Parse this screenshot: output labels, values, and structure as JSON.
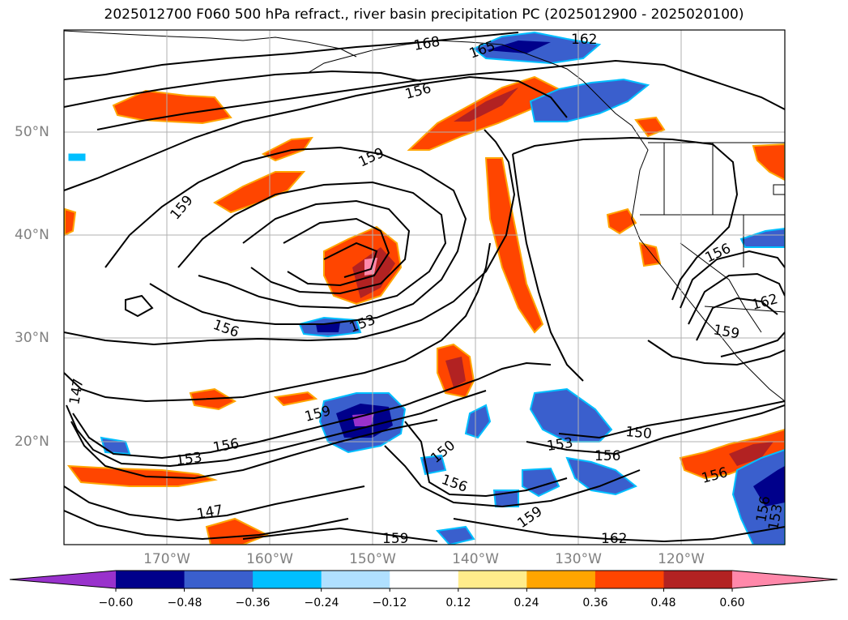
{
  "title": "2025012700 F060 500 hPa refract., river basin precipitation PC (2025012900 - 2025020100)",
  "lat_labels": [
    "50°N",
    "40°N",
    "30°N",
    "20°N"
  ],
  "lon_labels": [
    "170°W",
    "160°W",
    "150°W",
    "140°W",
    "130°W",
    "120°W"
  ],
  "colorbar": {
    "ticks": [
      "−0.60",
      "−0.48",
      "−0.36",
      "−0.24",
      "−0.12",
      "0.12",
      "0.24",
      "0.36",
      "0.48",
      "0.60"
    ],
    "colors": [
      "#9932cc",
      "#00008b",
      "#3a5fcd",
      "#00bfff",
      "#b0e0ff",
      "#ffffff",
      "#ffec8b",
      "#ffa500",
      "#ff4500",
      "#b22222",
      "#ff88aa"
    ]
  },
  "contour_labels": [
    "168",
    "165",
    "162",
    "156",
    "159",
    "159",
    "156",
    "153",
    "159",
    "156",
    "153",
    "150",
    "153",
    "156",
    "150",
    "156",
    "156",
    "162",
    "159",
    "147",
    "147",
    "159",
    "162",
    "156",
    "153",
    "159",
    "156"
  ]
}
